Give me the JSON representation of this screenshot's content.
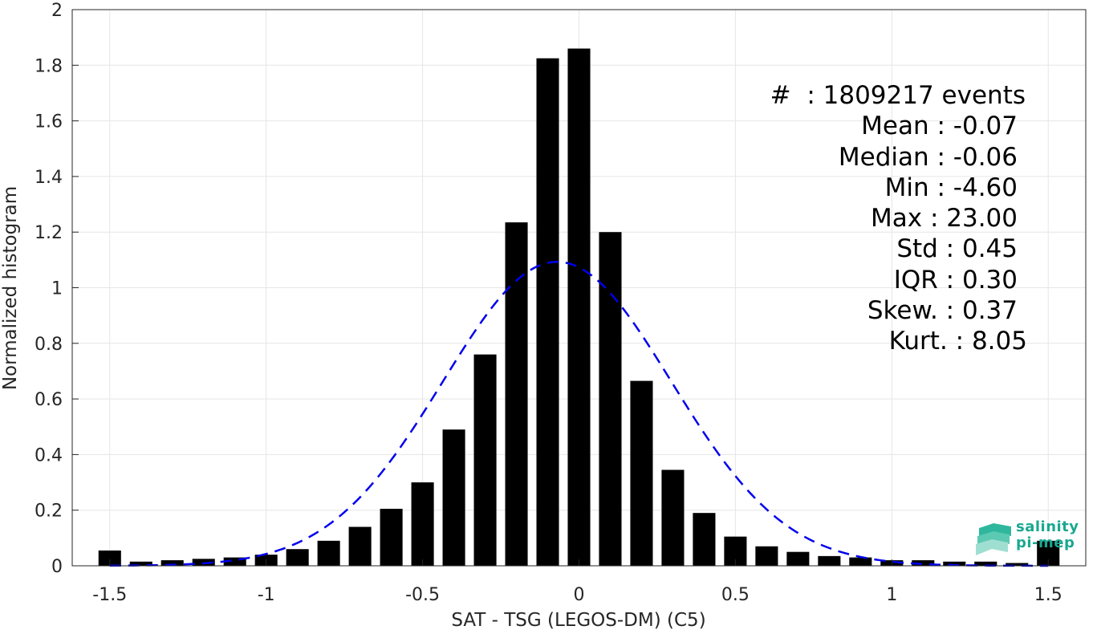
{
  "chart_data": {
    "type": "bar",
    "xlabel": "SAT - TSG (LEGOS-DM) (C5)",
    "ylabel": "Normalized histogram",
    "xlim": [
      -1.62,
      1.62
    ],
    "ylim": [
      0,
      2
    ],
    "xticks": [
      -1.5,
      -1,
      -0.5,
      0,
      0.5,
      1,
      1.5
    ],
    "xtick_labels": [
      "-1.5",
      "-1",
      "-0.5",
      "0",
      "0.5",
      "1",
      "1.5"
    ],
    "yticks": [
      0,
      0.2,
      0.4,
      0.6,
      0.8,
      1,
      1.2,
      1.4,
      1.6,
      1.8,
      2
    ],
    "ytick_labels": [
      "0",
      "0.2",
      "0.4",
      "0.6",
      "0.8",
      "1",
      "1.2",
      "1.4",
      "1.6",
      "1.8",
      "2"
    ],
    "grid": true,
    "bar_color": "#000000",
    "bars": {
      "x": [
        -1.5,
        -1.4,
        -1.3,
        -1.2,
        -1.1,
        -1.0,
        -0.9,
        -0.8,
        -0.7,
        -0.6,
        -0.5,
        -0.4,
        -0.3,
        -0.2,
        -0.1,
        0.0,
        0.1,
        0.2,
        0.3,
        0.4,
        0.5,
        0.6,
        0.7,
        0.8,
        0.9,
        1.0,
        1.1,
        1.2,
        1.3,
        1.4,
        1.5
      ],
      "values": [
        0.055,
        0.015,
        0.02,
        0.025,
        0.03,
        0.04,
        0.06,
        0.09,
        0.14,
        0.205,
        0.3,
        0.49,
        0.76,
        1.235,
        1.825,
        1.86,
        1.2,
        0.665,
        0.345,
        0.19,
        0.105,
        0.07,
        0.05,
        0.035,
        0.03,
        0.02,
        0.02,
        0.015,
        0.015,
        0.01,
        0.09
      ]
    },
    "fit_curve": {
      "style": "dashed",
      "color": "#0000ee",
      "mean": -0.07,
      "std": 0.365,
      "peak": 1.093
    }
  },
  "stats": {
    "count": "#  : 1809217 events",
    "mean": "Mean : -0.07",
    "median": "Median : -0.06",
    "min": "Min : -4.60",
    "max": "Max : 23.00",
    "std": "Std : 0.45",
    "iqr": "IQR : 0.30",
    "skew": "Skew. : 0.37",
    "kurt": "Kurt. : 8.05"
  },
  "logo": {
    "line1": "salinity",
    "line2": "pi-mep",
    "color": "#1aa88f"
  }
}
